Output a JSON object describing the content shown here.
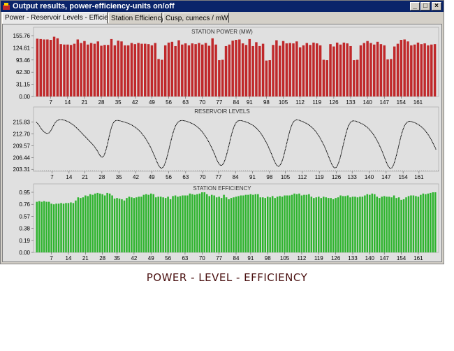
{
  "window": {
    "title": "Output results, power-efficiency-units on/off",
    "minimize_label": "_",
    "maximize_label": "□",
    "close_label": "×"
  },
  "tabs": [
    {
      "label": "Power - Reservoir Levels - Efficiency",
      "active": true
    },
    {
      "label": "Station Efficiency",
      "active": false
    },
    {
      "label": "Cusp, cumecs / mW",
      "active": false
    }
  ],
  "caption": "POWER - LEVEL - EFFICIENCY",
  "colors": {
    "power_bar": "#c0282a",
    "efficiency_bar": "#2eb42e",
    "level_line": "#000000",
    "plot_bg": "#e0e0e0"
  },
  "chart_data": [
    {
      "type": "bar",
      "title": "STATION POWER (MW)",
      "ylim": [
        0,
        155.76
      ],
      "yticks": [
        "155.76",
        "124.61",
        "93.46",
        "62.30",
        "31.15",
        "0.00"
      ],
      "xticks": [
        "7",
        "14",
        "21",
        "28",
        "35",
        "42",
        "49",
        "56",
        "63",
        "70",
        "77",
        "84",
        "91",
        "98",
        "105",
        "112",
        "119",
        "126",
        "133",
        "140",
        "147",
        "154",
        "161"
      ],
      "values": [
        148,
        147,
        146,
        146,
        145,
        153,
        149,
        134,
        133,
        133,
        132,
        135,
        146,
        137,
        142,
        133,
        137,
        135,
        141,
        130,
        132,
        132,
        147,
        131,
        143,
        141,
        131,
        131,
        137,
        134,
        137,
        135,
        135,
        134,
        131,
        137,
        96,
        94,
        131,
        138,
        140,
        129,
        144,
        133,
        136,
        131,
        136,
        134,
        137,
        133,
        137,
        130,
        149,
        133,
        93,
        94,
        129,
        133,
        143,
        145,
        146,
        136,
        132,
        147,
        129,
        139,
        129,
        135,
        92,
        93,
        132,
        144,
        130,
        142,
        136,
        137,
        136,
        141,
        126,
        131,
        137,
        132,
        138,
        136,
        131,
        94,
        93,
        134,
        128,
        138,
        133,
        138,
        136,
        129,
        93,
        94,
        131,
        137,
        142,
        137,
        133,
        140,
        134,
        131,
        95,
        96,
        128,
        135,
        145,
        146,
        141,
        131,
        133,
        138,
        134,
        136,
        131,
        133,
        134
      ]
    },
    {
      "type": "line",
      "title": "RESERVOIR LEVELS",
      "ylim": [
        202.8,
        217.6
      ],
      "yticks": [
        "215.83",
        "212.70",
        "209.57",
        "206.44",
        "203.31"
      ],
      "xticks": [
        "7",
        "14",
        "21",
        "28",
        "35",
        "42",
        "49",
        "56",
        "63",
        "70",
        "77",
        "84",
        "91",
        "98",
        "105",
        "112",
        "119",
        "126",
        "133",
        "140",
        "147",
        "154",
        "161"
      ],
      "values": [
        215.83,
        215.54,
        215.15,
        214.72,
        214.28,
        213.86,
        213.5,
        213.22,
        213.01,
        212.85,
        212.8,
        212.9,
        213.17,
        213.61,
        214.16,
        214.73,
        215.28,
        215.75,
        216.08,
        216.29,
        216.42,
        216.47,
        216.48,
        216.45,
        216.38,
        216.3,
        216.2,
        216.08,
        215.95,
        215.8,
        215.63,
        215.44,
        215.23,
        215.0,
        214.75,
        214.48,
        214.2,
        213.91,
        213.61,
        213.3,
        212.99,
        212.68,
        212.37,
        212.06,
        211.75,
        211.44,
        211.13,
        210.82,
        210.5,
        210.18,
        209.84,
        209.48,
        209.1,
        208.68,
        208.2,
        207.66,
        207.14,
        206.74,
        206.54,
        206.62,
        207.06,
        207.83,
        208.87,
        210.11,
        211.43,
        212.74,
        213.91,
        214.87,
        215.55,
        215.97,
        216.18,
        216.26,
        216.26,
        216.22,
        216.15,
        216.07,
        215.99,
        215.9,
        215.81,
        215.72,
        215.62,
        215.51,
        215.39,
        215.25,
        215.1,
        214.93,
        214.74,
        214.54,
        214.32,
        214.08,
        213.82,
        213.54,
        213.23,
        212.9,
        212.54,
        212.15,
        211.73,
        211.28,
        210.8,
        210.28,
        209.73,
        209.14,
        208.52,
        207.87,
        207.19,
        206.48,
        205.76,
        205.06,
        204.43,
        203.94,
        203.66,
        203.63,
        203.85,
        204.34,
        205.07,
        206.01,
        207.12,
        208.34,
        209.62,
        210.89,
        212.08,
        213.14,
        214.05,
        214.78,
        215.34,
        215.74,
        216.0,
        216.16,
        216.23,
        216.24,
        216.21,
        216.15,
        216.08,
        215.99,
        215.89,
        215.78,
        215.66,
        215.53,
        215.39,
        215.23,
        215.05,
        214.85,
        214.63,
        214.38,
        214.1,
        213.79,
        213.45,
        213.08,
        212.68,
        212.25,
        211.79,
        211.3,
        210.78,
        210.23,
        209.64,
        209.02,
        208.36,
        207.66,
        206.94,
        206.22,
        205.54,
        204.96,
        204.55,
        204.35,
        204.4,
        204.72,
        205.28,
        206.07,
        207.06,
        208.2,
        209.43,
        210.7,
        211.93,
        213.05,
        214.02,
        214.82,
        215.42,
        215.84,
        216.09,
        216.21,
        216.24,
        216.21,
        216.15,
        216.07,
        215.98,
        215.88,
        215.77,
        215.65,
        215.52,
        215.37,
        215.21,
        215.03,
        214.82,
        214.59,
        214.33,
        214.04,
        213.72,
        213.36,
        212.97,
        212.55,
        212.09,
        211.6,
        211.08,
        210.52,
        209.93,
        209.3,
        208.63,
        207.93,
        207.2,
        206.46,
        205.74,
        205.09,
        204.56,
        204.22,
        204.12,
        204.28,
        204.72,
        205.41,
        206.32,
        207.41,
        208.62,
        209.9,
        211.18,
        212.41,
        213.52,
        214.47,
        215.23,
        215.79,
        216.15,
        216.34,
        216.41,
        216.39,
        216.32,
        216.22,
        216.11,
        215.99,
        215.86,
        215.72,
        215.57,
        215.41,
        215.23,
        215.03,
        214.81,
        214.56,
        214.29,
        213.98,
        213.64,
        213.27,
        212.86,
        212.42,
        211.94,
        211.43,
        210.89,
        210.31,
        209.7,
        209.05,
        208.36,
        207.64,
        206.89,
        206.12,
        205.37,
        204.68,
        204.13,
        203.78,
        203.68,
        203.86,
        204.31,
        205.03,
        205.97,
        207.09,
        208.33,
        209.63,
        210.93,
        212.17,
        213.29,
        214.24,
        214.99,
        215.54,
        215.89,
        216.08,
        216.15,
        216.13,
        216.06,
        215.97,
        215.86,
        215.74,
        215.61,
        215.47,
        215.32,
        215.15,
        214.96,
        214.75,
        214.51,
        214.25,
        213.95,
        213.62,
        213.26,
        212.86,
        212.43,
        211.96,
        211.45,
        210.91,
        210.34,
        209.73,
        209.08,
        208.4,
        207.68,
        206.93,
        206.15,
        205.38,
        204.65,
        204.06,
        203.68,
        203.55,
        203.71,
        204.16,
        204.88,
        205.82,
        206.93,
        208.16,
        209.44,
        210.72,
        211.93,
        213.02,
        213.95,
        214.7,
        215.26,
        215.64,
        215.88,
        216.0,
        216.02,
        215.98,
        215.9,
        215.79,
        215.67,
        215.54,
        215.39,
        215.23,
        215.05,
        214.84,
        214.61,
        214.35,
        214.06,
        213.73,
        213.37,
        212.98,
        212.55,
        212.08,
        211.58,
        211.05,
        210.48,
        209.88,
        209.25,
        208.58
      ]
    },
    {
      "type": "bar",
      "title": "STATION EFFICIENCY",
      "ylim": [
        0,
        0.95
      ],
      "yticks": [
        "0.95",
        "0.76",
        "0.57",
        "0.38",
        "0.19",
        "0.00"
      ],
      "xticks": [
        "7",
        "14",
        "21",
        "28",
        "35",
        "42",
        "49",
        "56",
        "63",
        "70",
        "77",
        "84",
        "91",
        "98",
        "105",
        "112",
        "119",
        "126",
        "133",
        "140",
        "147",
        "154",
        "161"
      ],
      "values": [
        0.8,
        0.81,
        0.8,
        0.81,
        0.8,
        0.8,
        0.77,
        0.76,
        0.77,
        0.77,
        0.78,
        0.77,
        0.78,
        0.78,
        0.79,
        0.78,
        0.82,
        0.87,
        0.86,
        0.87,
        0.9,
        0.89,
        0.92,
        0.91,
        0.93,
        0.94,
        0.93,
        0.92,
        0.9,
        0.94,
        0.93,
        0.9,
        0.85,
        0.86,
        0.85,
        0.84,
        0.82,
        0.86,
        0.88,
        0.87,
        0.86,
        0.87,
        0.88,
        0.88,
        0.91,
        0.92,
        0.91,
        0.93,
        0.92,
        0.87,
        0.88,
        0.88,
        0.87,
        0.86,
        0.88,
        0.84,
        0.89,
        0.9,
        0.88,
        0.89,
        0.9,
        0.9,
        0.9,
        0.93,
        0.92,
        0.91,
        0.92,
        0.93,
        0.95,
        0.95,
        0.92,
        0.89,
        0.91,
        0.9,
        0.87,
        0.88,
        0.86,
        0.91,
        0.87,
        0.84,
        0.86,
        0.87,
        0.88,
        0.89,
        0.9,
        0.9,
        0.91,
        0.91,
        0.92,
        0.91,
        0.92,
        0.92,
        0.87,
        0.87,
        0.86,
        0.88,
        0.87,
        0.89,
        0.86,
        0.88,
        0.89,
        0.88,
        0.9,
        0.9,
        0.9,
        0.91,
        0.93,
        0.92,
        0.93,
        0.9,
        0.91,
        0.91,
        0.92,
        0.88,
        0.86,
        0.87,
        0.88,
        0.86,
        0.88,
        0.87,
        0.86,
        0.86,
        0.84,
        0.86,
        0.87,
        0.9,
        0.89,
        0.89,
        0.9,
        0.87,
        0.88,
        0.88,
        0.87,
        0.88,
        0.88,
        0.9,
        0.92,
        0.91,
        0.93,
        0.92,
        0.88,
        0.86,
        0.88,
        0.89,
        0.88,
        0.88,
        0.87,
        0.9,
        0.86,
        0.87,
        0.83,
        0.84,
        0.87,
        0.89,
        0.9,
        0.9,
        0.89,
        0.88,
        0.91,
        0.93,
        0.92,
        0.93,
        0.94,
        0.95,
        0.95
      ]
    }
  ]
}
